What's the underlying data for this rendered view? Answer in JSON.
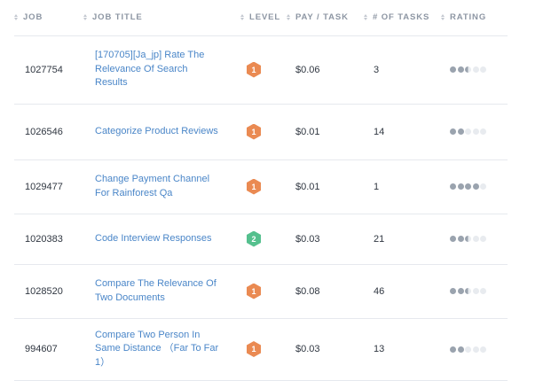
{
  "headers": [
    "JOB",
    "JOB TITLE",
    "LEVEL",
    "PAY / TASK",
    "# OF TASKS",
    "RATING"
  ],
  "colors": {
    "link": "#4a86c8",
    "level_1": "#ea8a52",
    "level_2": "#55c08e",
    "rating_filled": "#9aa3ae",
    "rating_empty": "#e8ebef"
  },
  "rows": [
    {
      "job": "1027754",
      "title": "[170705][Ja_jp] Rate The Relevance Of Search Results",
      "level": "1",
      "pay": "$0.06",
      "tasks": "3",
      "rating": 2.5
    },
    {
      "job": "1026546",
      "title": "Categorize Product Reviews",
      "level": "1",
      "pay": "$0.01",
      "tasks": "14",
      "rating": 2
    },
    {
      "job": "1029477",
      "title": "Change Payment Channel For Rainforest Qa",
      "level": "1",
      "pay": "$0.01",
      "tasks": "1",
      "rating": 4
    },
    {
      "job": "1020383",
      "title": "Code Interview Responses",
      "level": "2",
      "pay": "$0.03",
      "tasks": "21",
      "rating": 2.5
    },
    {
      "job": "1028520",
      "title": "Compare The Relevance Of Two Documents",
      "level": "1",
      "pay": "$0.08",
      "tasks": "46",
      "rating": 2.5
    },
    {
      "job": "994607",
      "title": "Compare Two Person In Same Distance （Far To Far 1）",
      "level": "1",
      "pay": "$0.03",
      "tasks": "13",
      "rating": 2
    }
  ]
}
